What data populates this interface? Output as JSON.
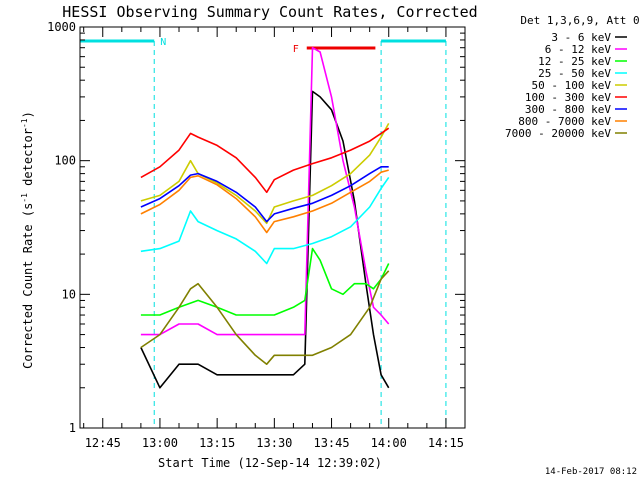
{
  "chart_data": {
    "type": "line",
    "title": "HESSI Observing Summary Count Rates, Corrected",
    "xlabel": "Start Time (12-Sep-14 12:39:02)",
    "ylabel": "Corrected Count Rate (s-1 detector-1)",
    "ylabel_main": "Corrected Count Rate (s",
    "ylabel_sup1": "-1",
    "ylabel_mid": " detector",
    "ylabel_sup2": "-1",
    "ylabel_end": ")",
    "xlim": [
      "12:39:02",
      "14:20:00"
    ],
    "ylim": [
      1,
      1000
    ],
    "yscale": "log",
    "x_ticks": [
      "12:45",
      "13:00",
      "13:15",
      "13:30",
      "13:45",
      "14:00",
      "14:15"
    ],
    "y_ticks": [
      "1",
      "10",
      "100",
      "1000"
    ],
    "legend_title": "Det 1,3,6,9, Att 0",
    "legend_position": "right",
    "series": [
      {
        "name": "3 - 6 keV",
        "color": "#000000",
        "x": [
          "12:55",
          "13:00",
          "13:05",
          "13:10",
          "13:15",
          "13:20",
          "13:25",
          "13:30",
          "13:35",
          "13:38",
          "13:40",
          "13:42",
          "13:45",
          "13:48",
          "13:51",
          "13:54",
          "13:56",
          "13:58",
          "14:00"
        ],
        "values": [
          4,
          2,
          3,
          3,
          2.5,
          2.5,
          2.5,
          2.5,
          2.5,
          3,
          330,
          300,
          240,
          140,
          50,
          12,
          5,
          2.5,
          2
        ]
      },
      {
        "name": "6 - 12 keV",
        "color": "#ff00ff",
        "x": [
          "12:55",
          "13:00",
          "13:05",
          "13:10",
          "13:15",
          "13:20",
          "13:25",
          "13:30",
          "13:35",
          "13:38",
          "13:40",
          "13:42",
          "13:45",
          "13:48",
          "13:51",
          "13:54",
          "13:56",
          "13:58",
          "14:00"
        ],
        "values": [
          5,
          5,
          6,
          6,
          5,
          5,
          5,
          5,
          5,
          5,
          700,
          650,
          300,
          100,
          45,
          15,
          8,
          7,
          6
        ]
      },
      {
        "name": "12 - 25 keV",
        "color": "#00ff00",
        "x": [
          "12:55",
          "13:00",
          "13:05",
          "13:10",
          "13:15",
          "13:20",
          "13:25",
          "13:30",
          "13:35",
          "13:38",
          "13:40",
          "13:42",
          "13:45",
          "13:48",
          "13:51",
          "13:54",
          "13:56",
          "13:58",
          "14:00"
        ],
        "values": [
          7,
          7,
          8,
          9,
          8,
          7,
          7,
          7,
          8,
          9,
          22,
          18,
          11,
          10,
          12,
          12,
          11,
          13,
          17
        ]
      },
      {
        "name": "25 - 50 keV",
        "color": "#00ffff",
        "x": [
          "12:55",
          "13:00",
          "13:05",
          "13:08",
          "13:10",
          "13:15",
          "13:20",
          "13:25",
          "13:28",
          "13:30",
          "13:35",
          "13:40",
          "13:45",
          "13:50",
          "13:55",
          "13:58",
          "14:00"
        ],
        "values": [
          21,
          22,
          25,
          42,
          35,
          30,
          26,
          21,
          17,
          22,
          22,
          24,
          27,
          32,
          45,
          62,
          75
        ]
      },
      {
        "name": "50 - 100 keV",
        "color": "#cccc00",
        "x": [
          "12:55",
          "13:00",
          "13:05",
          "13:08",
          "13:10",
          "13:15",
          "13:20",
          "13:25",
          "13:28",
          "13:30",
          "13:35",
          "13:40",
          "13:45",
          "13:50",
          "13:55",
          "13:58",
          "14:00"
        ],
        "values": [
          50,
          55,
          70,
          100,
          80,
          68,
          55,
          42,
          34,
          45,
          50,
          55,
          65,
          80,
          110,
          150,
          190
        ]
      },
      {
        "name": "100 - 300 keV",
        "color": "#ff0000",
        "x": [
          "12:55",
          "13:00",
          "13:05",
          "13:08",
          "13:10",
          "13:15",
          "13:20",
          "13:25",
          "13:28",
          "13:30",
          "13:35",
          "13:40",
          "13:45",
          "13:50",
          "13:55",
          "13:58",
          "14:00"
        ],
        "values": [
          75,
          90,
          120,
          160,
          150,
          130,
          105,
          75,
          58,
          72,
          85,
          95,
          105,
          120,
          140,
          160,
          175
        ]
      },
      {
        "name": "300 - 800 keV",
        "color": "#0000ff",
        "x": [
          "12:55",
          "13:00",
          "13:05",
          "13:08",
          "13:10",
          "13:15",
          "13:20",
          "13:25",
          "13:28",
          "13:30",
          "13:35",
          "13:40",
          "13:45",
          "13:50",
          "13:55",
          "13:58",
          "14:00"
        ],
        "values": [
          45,
          52,
          65,
          78,
          80,
          70,
          58,
          45,
          35,
          40,
          44,
          48,
          55,
          65,
          80,
          90,
          90
        ]
      },
      {
        "name": "800 - 7000 keV",
        "color": "#ff8000",
        "x": [
          "12:55",
          "13:00",
          "13:05",
          "13:08",
          "13:10",
          "13:15",
          "13:20",
          "13:25",
          "13:28",
          "13:30",
          "13:35",
          "13:40",
          "13:45",
          "13:50",
          "13:55",
          "13:58",
          "14:00"
        ],
        "values": [
          40,
          47,
          60,
          75,
          77,
          66,
          52,
          38,
          29,
          35,
          38,
          42,
          48,
          58,
          70,
          82,
          85
        ]
      },
      {
        "name": "7000 - 20000 keV",
        "color": "#808000",
        "x": [
          "12:55",
          "13:00",
          "13:05",
          "13:08",
          "13:10",
          "13:15",
          "13:20",
          "13:25",
          "13:28",
          "13:30",
          "13:35",
          "13:40",
          "13:45",
          "13:50",
          "13:55",
          "13:58",
          "14:00"
        ],
        "values": [
          4,
          5,
          8,
          11,
          12,
          8,
          5,
          3.5,
          3,
          3.5,
          3.5,
          3.5,
          4,
          5,
          8,
          13,
          15
        ]
      }
    ],
    "annotations": {
      "night_label": "N",
      "flare_label": "F",
      "night_color": "#00e0e0",
      "flare_color": "#ee0000",
      "night_intervals": [
        [
          "12:39:02",
          "12:58:30"
        ],
        [
          "13:58:00",
          "14:15:00"
        ]
      ],
      "flare_interval": [
        "13:38:30",
        "13:56:30"
      ]
    },
    "grid": false
  },
  "footer": {
    "timestamp": "14-Feb-2017 08:12"
  }
}
